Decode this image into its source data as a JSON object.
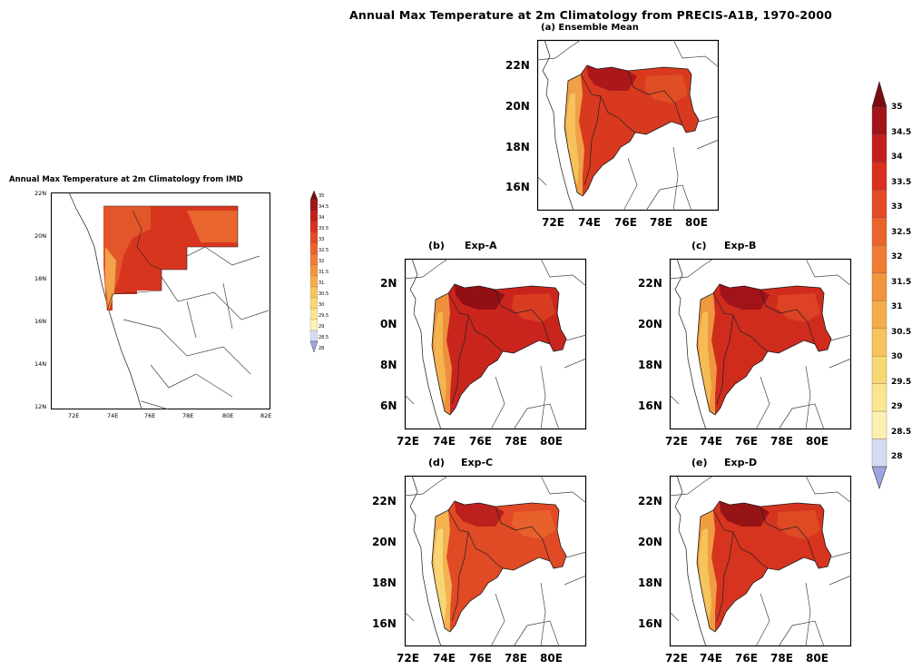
{
  "figure": {
    "main_title": "Annual Max Temperature at 2m Climatology from PRECIS-A1B, 1970-2000",
    "imd_title": "Annual Max Temperature at 2m Climatology from IMD"
  },
  "panels": {
    "ensemble": {
      "label": "(a) Ensemble Mean",
      "y_ticks": [
        "22N",
        "20N",
        "18N",
        "16N"
      ],
      "x_ticks": [
        "72E",
        "74E",
        "76E",
        "78E",
        "80E"
      ]
    },
    "exp_a": {
      "prefix": "(b)",
      "label": "Exp-A",
      "y_ticks": [
        "2N",
        "0N",
        "8N",
        "6N"
      ],
      "x_ticks": [
        "72E",
        "74E",
        "76E",
        "78E",
        "80E"
      ]
    },
    "exp_b": {
      "prefix": "(c)",
      "label": "Exp-B",
      "y_ticks": [
        "22N",
        "20N",
        "18N",
        "16N"
      ],
      "x_ticks": [
        "72E",
        "74E",
        "76E",
        "78E",
        "80E"
      ]
    },
    "exp_c": {
      "prefix": "(d)",
      "label": "Exp-C",
      "y_ticks": [
        "22N",
        "20N",
        "18N",
        "16N"
      ],
      "x_ticks": [
        "72E",
        "74E",
        "76E",
        "78E",
        "80E"
      ]
    },
    "exp_d": {
      "prefix": "(e)",
      "label": "Exp-D",
      "y_ticks": [
        "22N",
        "20N",
        "18N",
        "16N"
      ],
      "x_ticks": [
        "72E",
        "74E",
        "76E",
        "78E",
        "80E"
      ]
    },
    "imd": {
      "y_ticks": [
        "22N",
        "20N",
        "18N",
        "16N",
        "14N",
        "12N"
      ],
      "x_ticks": [
        "72E",
        "74E",
        "76E",
        "78E",
        "80E",
        "82E"
      ]
    }
  },
  "colorbar": {
    "labels": [
      "35",
      "34.5",
      "34",
      "33.5",
      "33",
      "32.5",
      "32",
      "31.5",
      "31",
      "30.5",
      "30",
      "29.5",
      "29",
      "28.5",
      "28"
    ],
    "colors": [
      "#7a0b10",
      "#a3141a",
      "#c41f1f",
      "#d9301f",
      "#e44a25",
      "#ec632c",
      "#f07c34",
      "#f3953e",
      "#f5ad4a",
      "#f7c35b",
      "#f9d772",
      "#fbe68f",
      "#fdf1b2",
      "#d6daf2",
      "#9aa6e0"
    ]
  },
  "imd_colorbar": {
    "labels": [
      "35",
      "34.5",
      "34",
      "33.5",
      "33",
      "32.5",
      "32",
      "31.5",
      "31",
      "30.5",
      "30",
      "29.5",
      "29",
      "28.5",
      "28"
    ]
  }
}
